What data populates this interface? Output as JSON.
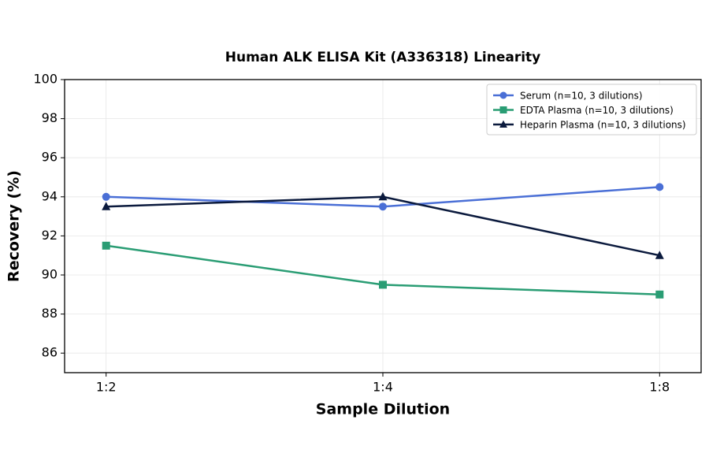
{
  "chart_data": {
    "type": "line",
    "title": "Human ALK ELISA Kit (A336318) Linearity",
    "x_label": "Sample Dilution",
    "y_label": "Recovery (%)",
    "categories": [
      "1:2",
      "1:4",
      "1:8"
    ],
    "series": [
      {
        "name": "Serum (n=10, 3 dilutions)",
        "color": "#4a6fd6",
        "marker": "circle",
        "values": [
          94,
          93.5,
          94.5
        ]
      },
      {
        "name": "EDTA Plasma (n=10, 3 dilutions)",
        "color": "#2a9d74",
        "marker": "square",
        "values": [
          91.5,
          89.5,
          89
        ]
      },
      {
        "name": "Heparin Plasma (n=10, 3 dilutions)",
        "color": "#0b1a3d",
        "marker": "triangle",
        "values": [
          93.5,
          94,
          91
        ]
      }
    ],
    "ylim": [
      85,
      100
    ],
    "yticks": [
      86,
      88,
      90,
      92,
      94,
      96,
      98,
      100
    ],
    "grid": true,
    "legend": "upper-right"
  }
}
